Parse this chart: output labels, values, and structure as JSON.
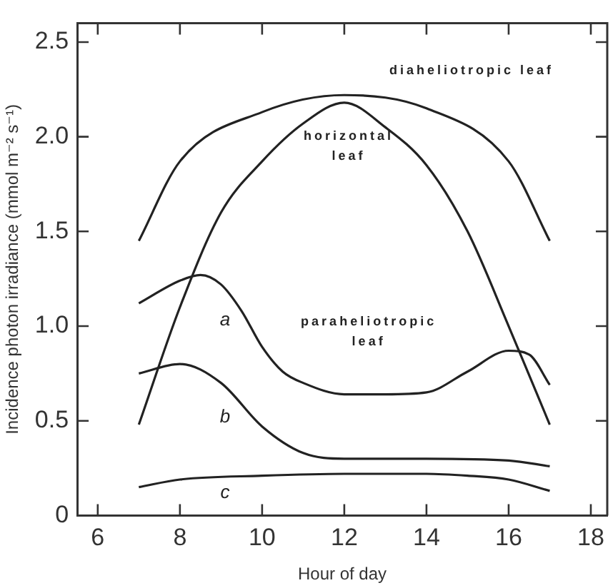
{
  "chart_data": {
    "type": "line",
    "xlabel": "Hour of day",
    "ylabel": "Incidence photon irradiance (mmol m⁻² s⁻¹)",
    "xlim": [
      5.5,
      18.4
    ],
    "xticks": [
      6,
      8,
      {
        "value": 10,
        "label": "10"
      },
      12,
      14,
      16,
      18
    ],
    "ylim": [
      0,
      2.6
    ],
    "yticks": [
      0,
      {
        "value": 0.5,
        "label": "0.5"
      },
      {
        "value": 1,
        "label": "1.0"
      },
      {
        "value": 1.5,
        "label": "1.5"
      },
      {
        "value": 2,
        "label": "2.0"
      },
      {
        "value": 2.5,
        "label": "2.5"
      }
    ],
    "grid": false,
    "legend": false,
    "marker": "none",
    "line_style": "solid",
    "series": [
      {
        "name": "diaheliotropic leaf",
        "color": "#222222",
        "x": [
          7,
          8,
          10,
          12,
          14,
          16,
          17
        ],
        "values": [
          1.45,
          1.87,
          2.13,
          2.22,
          2.15,
          1.87,
          1.45
        ]
      },
      {
        "name": "horizontal leaf",
        "color": "#222222",
        "x": [
          7,
          8,
          9,
          10,
          11,
          12,
          13,
          14,
          15,
          16,
          17
        ],
        "values": [
          0.48,
          1.1,
          1.6,
          1.87,
          2.07,
          2.18,
          2.05,
          1.85,
          1.5,
          1.0,
          0.48
        ]
      },
      {
        "name": "a",
        "color": "#222222",
        "x": [
          7,
          8,
          8.5,
          9,
          9.5,
          10,
          10.5,
          11,
          12,
          13,
          14,
          15,
          16,
          16.5,
          17
        ],
        "values": [
          1.12,
          1.24,
          1.27,
          1.22,
          1.08,
          0.89,
          0.76,
          0.7,
          0.64,
          0.64,
          0.65,
          0.76,
          0.87,
          0.85,
          0.69
        ]
      },
      {
        "name": "b",
        "color": "#222222",
        "x": [
          7,
          8,
          9,
          10,
          11,
          12,
          14,
          16,
          17
        ],
        "values": [
          0.75,
          0.8,
          0.7,
          0.47,
          0.33,
          0.3,
          0.3,
          0.29,
          0.26
        ]
      },
      {
        "name": "c",
        "color": "#222222",
        "x": [
          7,
          8,
          10,
          12,
          14,
          15,
          16,
          17
        ],
        "values": [
          0.15,
          0.19,
          0.21,
          0.22,
          0.22,
          0.21,
          0.19,
          0.13
        ]
      }
    ],
    "annotations": [
      "paraheliotropic leaf"
    ]
  }
}
